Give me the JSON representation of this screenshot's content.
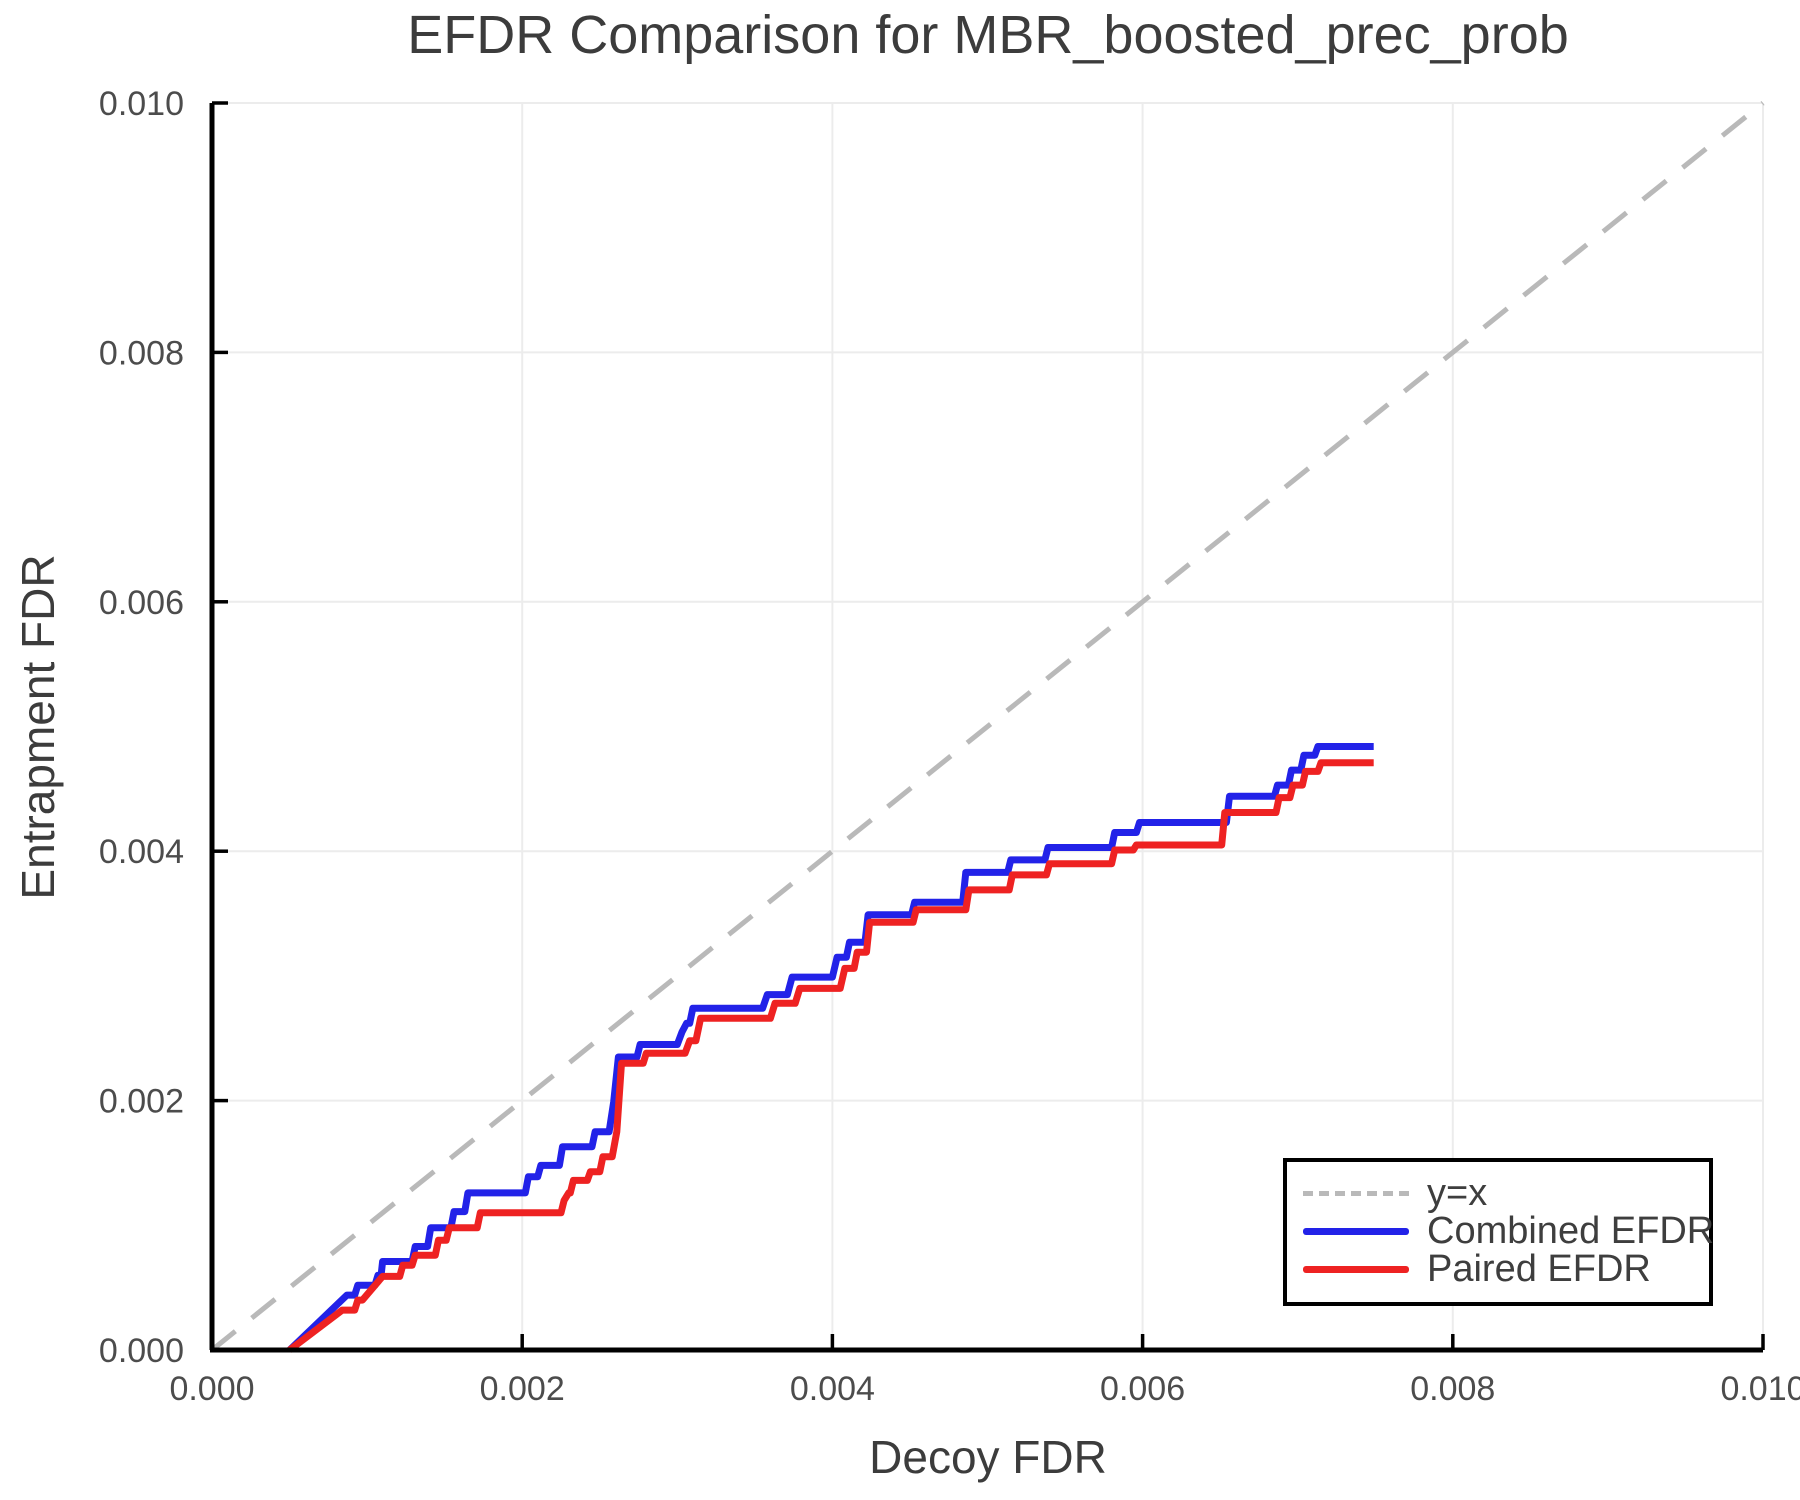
{
  "figure": {
    "background": "#ffffff"
  },
  "chart_data": {
    "type": "line",
    "title": "EFDR Comparison for MBR_boosted_prec_prob",
    "xlabel": "Decoy FDR",
    "ylabel": "Entrapment FDR",
    "xlim": [
      0.0,
      0.01
    ],
    "ylim": [
      0.0,
      0.01
    ],
    "grid": true,
    "legend_position": "lower right",
    "xticks": {
      "values": [
        0.0,
        0.002,
        0.004,
        0.006,
        0.008,
        0.01
      ],
      "labels": [
        "0.000",
        "0.002",
        "0.004",
        "0.006",
        "0.008",
        "0.010"
      ]
    },
    "yticks": {
      "values": [
        0.0,
        0.002,
        0.004,
        0.006,
        0.008,
        0.01
      ],
      "labels": [
        "0.000",
        "0.002",
        "0.004",
        "0.006",
        "0.008",
        "0.010"
      ]
    },
    "colors": {
      "grid": "#ececec",
      "spine": "#000000",
      "tick_label": "#4c4c4c",
      "title": "#3c3c3c",
      "axis_label": "#3c3c3c",
      "legend_border": "#000000"
    },
    "series": [
      {
        "name": "y=x",
        "style": "dashed",
        "color": "#b9b9b9",
        "points": [
          [
            0.0,
            0.0
          ],
          [
            0.01,
            0.01
          ]
        ]
      },
      {
        "name": "Combined EFDR",
        "style": "solid",
        "color": "#2222e8",
        "points": [
          [
            0.0005,
            0.0
          ],
          [
            0.00087,
            0.00044
          ],
          [
            0.00092,
            0.00044
          ],
          [
            0.00094,
            0.00052
          ],
          [
            0.00105,
            0.00052
          ],
          [
            0.00107,
            0.0006
          ],
          [
            0.00109,
            0.0006
          ],
          [
            0.0011,
            0.00071
          ],
          [
            0.00129,
            0.00071
          ],
          [
            0.00131,
            0.00083
          ],
          [
            0.00139,
            0.00083
          ],
          [
            0.00141,
            0.00098
          ],
          [
            0.00154,
            0.00098
          ],
          [
            0.00156,
            0.00111
          ],
          [
            0.00163,
            0.00111
          ],
          [
            0.00165,
            0.00126
          ],
          [
            0.00202,
            0.00126
          ],
          [
            0.00204,
            0.00139
          ],
          [
            0.0021,
            0.00139
          ],
          [
            0.00212,
            0.00148
          ],
          [
            0.00224,
            0.00148
          ],
          [
            0.00226,
            0.00163
          ],
          [
            0.00245,
            0.00163
          ],
          [
            0.00247,
            0.00175
          ],
          [
            0.00256,
            0.00175
          ],
          [
            0.00259,
            0.00199
          ],
          [
            0.00262,
            0.00235
          ],
          [
            0.00274,
            0.00235
          ],
          [
            0.00276,
            0.00245
          ],
          [
            0.003,
            0.00245
          ],
          [
            0.00303,
            0.00255
          ],
          [
            0.00306,
            0.00262
          ],
          [
            0.00308,
            0.00262
          ],
          [
            0.0031,
            0.00274
          ],
          [
            0.00355,
            0.00274
          ],
          [
            0.00358,
            0.00285
          ],
          [
            0.00371,
            0.00285
          ],
          [
            0.00374,
            0.00299
          ],
          [
            0.004,
            0.00299
          ],
          [
            0.00403,
            0.00315
          ],
          [
            0.00409,
            0.00315
          ],
          [
            0.00411,
            0.00327
          ],
          [
            0.00421,
            0.00327
          ],
          [
            0.00423,
            0.00349
          ],
          [
            0.00451,
            0.00349
          ],
          [
            0.00453,
            0.00359
          ],
          [
            0.00484,
            0.00359
          ],
          [
            0.00486,
            0.00383
          ],
          [
            0.00513,
            0.00383
          ],
          [
            0.00515,
            0.00393
          ],
          [
            0.00537,
            0.00393
          ],
          [
            0.00539,
            0.00403
          ],
          [
            0.0058,
            0.00403
          ],
          [
            0.00582,
            0.00415
          ],
          [
            0.00596,
            0.00415
          ],
          [
            0.00598,
            0.00423
          ],
          [
            0.00654,
            0.00423
          ],
          [
            0.00656,
            0.00444
          ],
          [
            0.00685,
            0.00444
          ],
          [
            0.00687,
            0.00453
          ],
          [
            0.00694,
            0.00453
          ],
          [
            0.00696,
            0.00465
          ],
          [
            0.00702,
            0.00465
          ],
          [
            0.00704,
            0.00477
          ],
          [
            0.00711,
            0.00477
          ],
          [
            0.00713,
            0.00484
          ],
          [
            0.00749,
            0.00484
          ]
        ]
      },
      {
        "name": "Paired EFDR",
        "style": "solid",
        "color": "#ee2222",
        "points": [
          [
            0.0005,
            0.0
          ],
          [
            0.00084,
            0.00032
          ],
          [
            0.00092,
            0.00032
          ],
          [
            0.00094,
            0.0004
          ],
          [
            0.00097,
            0.0004
          ],
          [
            0.0011,
            0.00059
          ],
          [
            0.00121,
            0.00059
          ],
          [
            0.00123,
            0.00068
          ],
          [
            0.00129,
            0.00068
          ],
          [
            0.00131,
            0.00076
          ],
          [
            0.00144,
            0.00076
          ],
          [
            0.00146,
            0.00088
          ],
          [
            0.00151,
            0.00088
          ],
          [
            0.00153,
            0.00098
          ],
          [
            0.00171,
            0.00098
          ],
          [
            0.00173,
            0.0011
          ],
          [
            0.00225,
            0.0011
          ],
          [
            0.00227,
            0.0012
          ],
          [
            0.0023,
            0.00126
          ],
          [
            0.00231,
            0.00126
          ],
          [
            0.00233,
            0.00136
          ],
          [
            0.00242,
            0.00136
          ],
          [
            0.00244,
            0.00143
          ],
          [
            0.0025,
            0.00143
          ],
          [
            0.00252,
            0.00155
          ],
          [
            0.00258,
            0.00155
          ],
          [
            0.00261,
            0.00175
          ],
          [
            0.00264,
            0.0023
          ],
          [
            0.00278,
            0.0023
          ],
          [
            0.0028,
            0.00238
          ],
          [
            0.00305,
            0.00238
          ],
          [
            0.00308,
            0.00248
          ],
          [
            0.00312,
            0.00248
          ],
          [
            0.00315,
            0.00266
          ],
          [
            0.0036,
            0.00266
          ],
          [
            0.00363,
            0.00278
          ],
          [
            0.00376,
            0.00278
          ],
          [
            0.00379,
            0.0029
          ],
          [
            0.00405,
            0.0029
          ],
          [
            0.00408,
            0.00306
          ],
          [
            0.00414,
            0.00306
          ],
          [
            0.00416,
            0.00319
          ],
          [
            0.00422,
            0.00319
          ],
          [
            0.00424,
            0.00343
          ],
          [
            0.00452,
            0.00343
          ],
          [
            0.00454,
            0.00353
          ],
          [
            0.00486,
            0.00353
          ],
          [
            0.00488,
            0.00369
          ],
          [
            0.00514,
            0.00369
          ],
          [
            0.00516,
            0.00381
          ],
          [
            0.00538,
            0.00381
          ],
          [
            0.0054,
            0.0039
          ],
          [
            0.0058,
            0.0039
          ],
          [
            0.00582,
            0.00401
          ],
          [
            0.00594,
            0.00401
          ],
          [
            0.00596,
            0.00405
          ],
          [
            0.00651,
            0.00405
          ],
          [
            0.00653,
            0.00431
          ],
          [
            0.00686,
            0.00431
          ],
          [
            0.00688,
            0.00443
          ],
          [
            0.00695,
            0.00443
          ],
          [
            0.00697,
            0.00453
          ],
          [
            0.00703,
            0.00453
          ],
          [
            0.00705,
            0.00464
          ],
          [
            0.00713,
            0.00464
          ],
          [
            0.00715,
            0.00471
          ],
          [
            0.00749,
            0.00471
          ]
        ]
      }
    ]
  }
}
